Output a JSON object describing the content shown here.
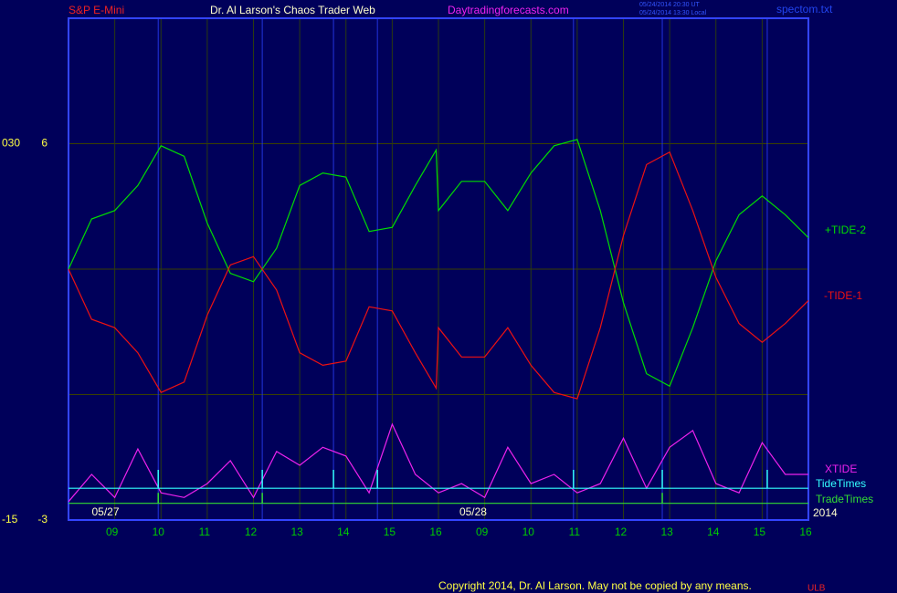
{
  "chart_data": {
    "type": "line",
    "symbol": "S&P E-Mini",
    "title": "Dr. Al Larson's Chaos Trader Web",
    "site": "Daytradingforecasts.com",
    "timestamps": [
      "05/24/2014 20:30 UT",
      "05/24/2014 13:30 Local"
    ],
    "file": "spectom.txt",
    "year": "2014",
    "copyright": "Copyright 2014, Dr. Al Larson. May not be copied by any means.",
    "footer_mark": "ULB",
    "xlim": [
      0,
      16
    ],
    "xticks": [
      {
        "value": 1,
        "label": "09"
      },
      {
        "value": 2,
        "label": "10"
      },
      {
        "value": 3,
        "label": "11"
      },
      {
        "value": 4,
        "label": "12"
      },
      {
        "value": 5,
        "label": "13"
      },
      {
        "value": 6,
        "label": "14"
      },
      {
        "value": 7,
        "label": "15"
      },
      {
        "value": 8,
        "label": "16"
      },
      {
        "value": 9,
        "label": "09"
      },
      {
        "value": 10,
        "label": "10"
      },
      {
        "value": 11,
        "label": "11"
      },
      {
        "value": 12,
        "label": "12"
      },
      {
        "value": 13,
        "label": "13"
      },
      {
        "value": 14,
        "label": "14"
      },
      {
        "value": 15,
        "label": "15"
      },
      {
        "value": 16,
        "label": "16"
      }
    ],
    "dates": [
      {
        "value": 0.8,
        "label": "05/27"
      },
      {
        "value": 8.75,
        "label": "05/28"
      }
    ],
    "ylim": [
      -3,
      9
    ],
    "yticks": [
      6,
      -3
    ],
    "y2lim": [
      -15,
      45
    ],
    "y2ticks": [
      {
        "value": 30,
        "label": "030"
      },
      -15
    ],
    "grid_y": [
      0,
      3,
      6
    ],
    "x": [
      0,
      0.5,
      1,
      1.5,
      2,
      2.5,
      3,
      3.5,
      4,
      4.5,
      5,
      5.5,
      6,
      6.5,
      7,
      7.5,
      7.95,
      8,
      8.5,
      9,
      9.5,
      10,
      10.5,
      11,
      11.5,
      12,
      12.5,
      13,
      13.5,
      14,
      14.5,
      15,
      15.5,
      16
    ],
    "series": [
      {
        "name": "+TIDE-2",
        "color": "#00dd00",
        "values": [
          3.0,
          4.2,
          4.4,
          5.0,
          5.95,
          5.7,
          4.1,
          2.9,
          2.7,
          3.5,
          5.0,
          5.3,
          5.2,
          3.9,
          4.0,
          5.0,
          5.85,
          4.4,
          5.1,
          5.1,
          4.4,
          5.3,
          5.95,
          6.1,
          4.4,
          2.2,
          0.5,
          0.2,
          1.6,
          3.2,
          4.3,
          4.75,
          4.3,
          3.75
        ]
      },
      {
        "name": "-TIDE-1",
        "color": "#ee1111",
        "values": [
          3.0,
          1.8,
          1.6,
          1.0,
          0.05,
          0.3,
          1.9,
          3.1,
          3.3,
          2.5,
          1.0,
          0.7,
          0.8,
          2.1,
          2.0,
          1.0,
          0.15,
          1.6,
          0.9,
          0.9,
          1.6,
          0.7,
          0.05,
          -0.1,
          1.6,
          3.8,
          5.5,
          5.8,
          4.4,
          2.8,
          1.7,
          1.25,
          1.7,
          2.25
        ]
      },
      {
        "name": "XTIDE",
        "color": "#ee22ee",
        "x": [
          0,
          0.5,
          1,
          1.5,
          2,
          2.5,
          3,
          3.5,
          4,
          4.5,
          5,
          5.5,
          6,
          6.5,
          7,
          7.5,
          8,
          8.5,
          9,
          9.5,
          10,
          10.5,
          11,
          11.5,
          12,
          12.5,
          13,
          13.5,
          14,
          14.5,
          15,
          15.5,
          16
        ],
        "values": [
          -2.56,
          -1.91,
          -2.46,
          -1.3,
          -2.35,
          -2.46,
          -2.13,
          -1.58,
          -2.46,
          -1.36,
          -1.69,
          -1.26,
          -1.47,
          -2.35,
          -0.71,
          -1.91,
          -2.35,
          -2.13,
          -2.46,
          -1.26,
          -2.13,
          -1.91,
          -2.35,
          -2.13,
          -1.04,
          -2.24,
          -1.26,
          -0.86,
          -2.13,
          -2.35,
          -1.15,
          -1.91,
          -1.91
        ]
      },
      {
        "name": "TideTimes",
        "color": "#33ffff",
        "base": -2.24,
        "x": [
          1.94,
          4.19,
          5.73,
          6.68,
          10.92,
          12.84,
          15.11
        ],
        "values": [
          -1.8,
          -1.8,
          -1.8,
          -1.8,
          -1.8,
          -1.8,
          -1.8
        ]
      },
      {
        "name": "TradeTimes",
        "color": "#33dd33",
        "base": -2.6,
        "x": [
          1.94,
          4.19,
          12.84
        ],
        "values": [
          -2.35,
          -2.35,
          -2.35
        ]
      }
    ]
  }
}
